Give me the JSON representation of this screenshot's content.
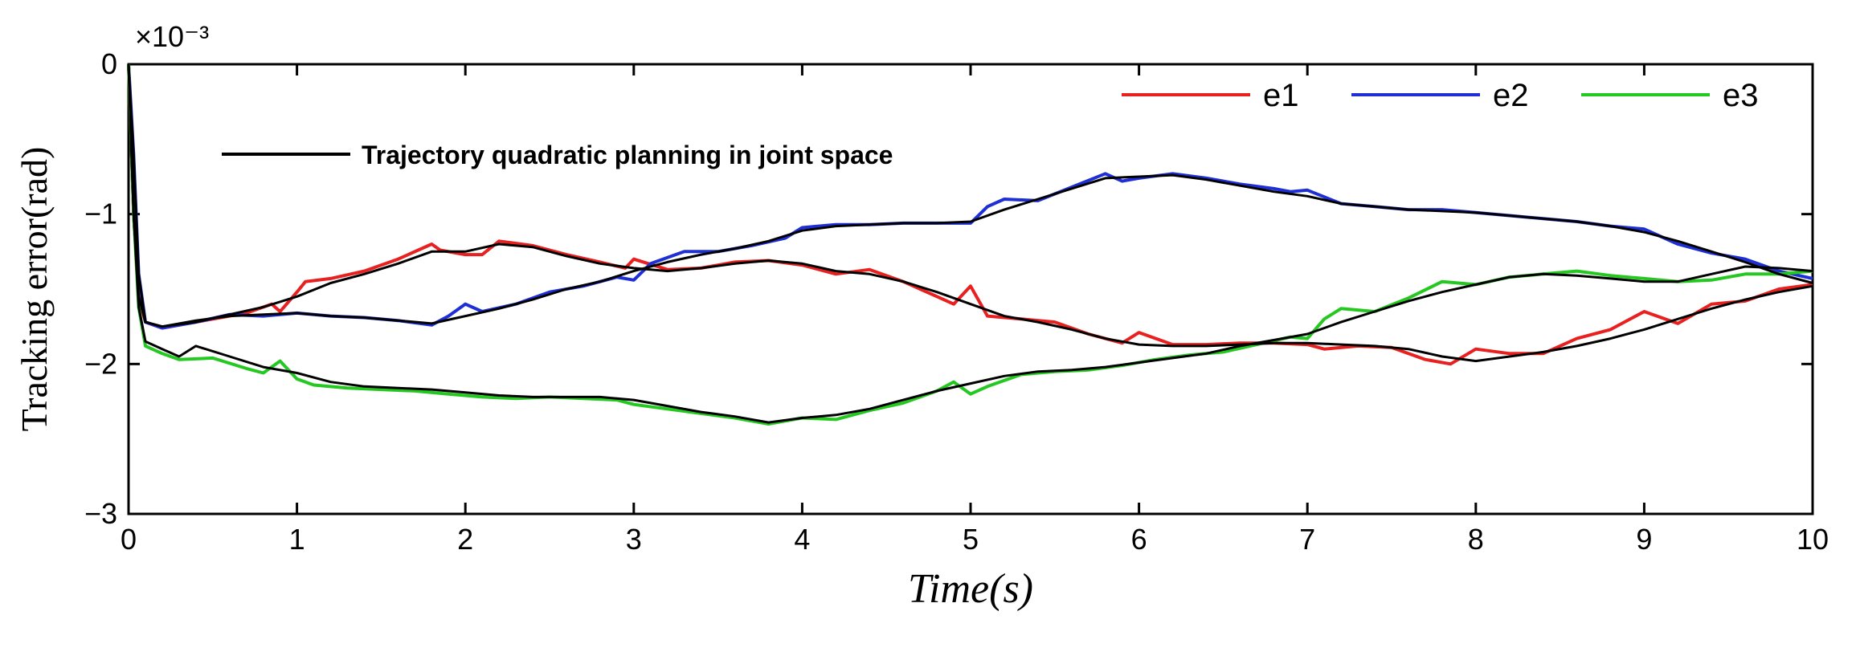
{
  "chart_data": {
    "type": "line",
    "exponent_label": "×10⁻³",
    "xlabel": "Time(s)",
    "ylabel": "Tracking error(rad)",
    "xlim": [
      0,
      10
    ],
    "ylim": [
      -3,
      0
    ],
    "xticks": [
      0,
      1,
      2,
      3,
      4,
      5,
      6,
      7,
      8,
      9,
      10
    ],
    "xtick_labels": [
      "0",
      "1",
      "2",
      "3",
      "4",
      "5",
      "6",
      "7",
      "8",
      "9",
      "10"
    ],
    "yticks": [
      0,
      -1,
      -2,
      -3
    ],
    "ytick_labels": [
      "0",
      "−1",
      "−2",
      "−3"
    ],
    "grid": false,
    "legend": [
      "e1",
      "e2",
      "e3"
    ],
    "legend_placement": "top-right",
    "annotation": {
      "label": "Trajectory quadratic planning in joint space",
      "color": "#000000"
    },
    "series": [
      {
        "name": "e1",
        "color": "#e8201f",
        "x": [
          0,
          0.03,
          0.06,
          0.1,
          0.2,
          0.3,
          0.5,
          0.7,
          0.85,
          0.9,
          1.0,
          1.05,
          1.2,
          1.4,
          1.6,
          1.8,
          1.85,
          2.0,
          2.1,
          2.2,
          2.4,
          2.6,
          2.8,
          2.95,
          3.0,
          3.2,
          3.4,
          3.6,
          3.8,
          4.0,
          4.2,
          4.4,
          4.6,
          4.8,
          4.9,
          5.0,
          5.1,
          5.3,
          5.5,
          5.7,
          5.9,
          6.0,
          6.2,
          6.4,
          6.6,
          6.8,
          7.0,
          7.1,
          7.3,
          7.5,
          7.7,
          7.85,
          8.0,
          8.2,
          8.4,
          8.6,
          8.8,
          9.0,
          9.2,
          9.4,
          9.6,
          9.8,
          10.0
        ],
        "y": [
          0,
          -1.0,
          -1.55,
          -1.72,
          -1.76,
          -1.74,
          -1.7,
          -1.66,
          -1.6,
          -1.65,
          -1.52,
          -1.45,
          -1.43,
          -1.38,
          -1.3,
          -1.2,
          -1.24,
          -1.27,
          -1.27,
          -1.18,
          -1.21,
          -1.27,
          -1.32,
          -1.36,
          -1.3,
          -1.37,
          -1.36,
          -1.32,
          -1.31,
          -1.34,
          -1.4,
          -1.37,
          -1.45,
          -1.55,
          -1.6,
          -1.48,
          -1.68,
          -1.7,
          -1.72,
          -1.8,
          -1.86,
          -1.79,
          -1.87,
          -1.87,
          -1.86,
          -1.86,
          -1.87,
          -1.9,
          -1.88,
          -1.89,
          -1.97,
          -2.0,
          -1.9,
          -1.93,
          -1.93,
          -1.83,
          -1.77,
          -1.65,
          -1.73,
          -1.6,
          -1.58,
          -1.5,
          -1.47
        ]
      },
      {
        "name": "e2",
        "color": "#1f2fd6",
        "x": [
          0,
          0.03,
          0.06,
          0.1,
          0.2,
          0.4,
          0.6,
          0.8,
          1.0,
          1.2,
          1.4,
          1.6,
          1.8,
          1.9,
          2.0,
          2.1,
          2.3,
          2.5,
          2.7,
          2.9,
          3.0,
          3.1,
          3.3,
          3.5,
          3.7,
          3.9,
          4.0,
          4.2,
          4.4,
          4.6,
          4.8,
          5.0,
          5.1,
          5.2,
          5.4,
          5.6,
          5.8,
          5.9,
          6.0,
          6.2,
          6.4,
          6.6,
          6.8,
          6.9,
          7.0,
          7.2,
          7.4,
          7.6,
          7.8,
          8.0,
          8.2,
          8.4,
          8.6,
          8.8,
          9.0,
          9.2,
          9.4,
          9.6,
          9.8,
          10.0
        ],
        "y": [
          0,
          -0.6,
          -1.4,
          -1.72,
          -1.76,
          -1.72,
          -1.67,
          -1.68,
          -1.66,
          -1.68,
          -1.69,
          -1.71,
          -1.74,
          -1.68,
          -1.6,
          -1.65,
          -1.6,
          -1.52,
          -1.48,
          -1.42,
          -1.44,
          -1.33,
          -1.25,
          -1.25,
          -1.21,
          -1.16,
          -1.09,
          -1.07,
          -1.07,
          -1.06,
          -1.06,
          -1.06,
          -0.95,
          -0.9,
          -0.91,
          -0.82,
          -0.73,
          -0.78,
          -0.76,
          -0.73,
          -0.76,
          -0.8,
          -0.83,
          -0.85,
          -0.84,
          -0.93,
          -0.95,
          -0.97,
          -0.97,
          -0.99,
          -1.01,
          -1.03,
          -1.05,
          -1.08,
          -1.1,
          -1.2,
          -1.26,
          -1.3,
          -1.38,
          -1.43
        ]
      },
      {
        "name": "e3",
        "color": "#25c820",
        "x": [
          0,
          0.03,
          0.06,
          0.1,
          0.2,
          0.3,
          0.5,
          0.7,
          0.8,
          0.9,
          1.0,
          1.1,
          1.3,
          1.5,
          1.7,
          1.9,
          2.1,
          2.3,
          2.5,
          2.7,
          2.9,
          3.0,
          3.2,
          3.4,
          3.6,
          3.8,
          4.0,
          4.2,
          4.4,
          4.6,
          4.8,
          4.9,
          5.0,
          5.1,
          5.3,
          5.5,
          5.7,
          5.9,
          6.1,
          6.3,
          6.5,
          6.7,
          6.9,
          7.0,
          7.1,
          7.2,
          7.4,
          7.6,
          7.8,
          8.0,
          8.2,
          8.4,
          8.6,
          8.8,
          9.0,
          9.2,
          9.4,
          9.6,
          9.8,
          10.0
        ],
        "y": [
          0,
          -1.0,
          -1.62,
          -1.88,
          -1.93,
          -1.97,
          -1.96,
          -2.03,
          -2.06,
          -1.98,
          -2.1,
          -2.14,
          -2.16,
          -2.17,
          -2.18,
          -2.2,
          -2.22,
          -2.23,
          -2.22,
          -2.23,
          -2.24,
          -2.27,
          -2.3,
          -2.33,
          -2.36,
          -2.4,
          -2.36,
          -2.37,
          -2.31,
          -2.26,
          -2.18,
          -2.12,
          -2.2,
          -2.15,
          -2.07,
          -2.05,
          -2.04,
          -2.01,
          -1.97,
          -1.94,
          -1.92,
          -1.87,
          -1.82,
          -1.83,
          -1.7,
          -1.63,
          -1.65,
          -1.56,
          -1.45,
          -1.47,
          -1.42,
          -1.4,
          -1.38,
          -1.41,
          -1.43,
          -1.45,
          -1.44,
          -1.4,
          -1.4,
          -1.38
        ]
      },
      {
        "name": "Trajectory quadratic planning in joint space",
        "color": "#000000",
        "role": "reference",
        "curves": [
          {
            "x": [
              0,
              0.03,
              0.06,
              0.1,
              0.2,
              0.4,
              0.6,
              0.8,
              1.0,
              1.2,
              1.4,
              1.6,
              1.8,
              2.0,
              2.2,
              2.4,
              2.6,
              2.8,
              3.0,
              3.2,
              3.4,
              3.6,
              3.8,
              4.0,
              4.2,
              4.4,
              4.6,
              4.8,
              5.0,
              5.2,
              5.4,
              5.6,
              5.8,
              6.0,
              6.2,
              6.4,
              6.6,
              6.8,
              7.0,
              7.2,
              7.4,
              7.6,
              7.8,
              8.0,
              8.2,
              8.4,
              8.6,
              8.8,
              9.0,
              9.2,
              9.4,
              9.6,
              9.8,
              10.0
            ],
            "y": [
              0,
              -1.0,
              -1.55,
              -1.72,
              -1.75,
              -1.72,
              -1.67,
              -1.62,
              -1.55,
              -1.46,
              -1.4,
              -1.33,
              -1.25,
              -1.25,
              -1.2,
              -1.22,
              -1.28,
              -1.33,
              -1.36,
              -1.38,
              -1.36,
              -1.33,
              -1.31,
              -1.33,
              -1.38,
              -1.4,
              -1.45,
              -1.52,
              -1.6,
              -1.68,
              -1.72,
              -1.77,
              -1.83,
              -1.87,
              -1.88,
              -1.88,
              -1.87,
              -1.86,
              -1.86,
              -1.87,
              -1.88,
              -1.9,
              -1.95,
              -1.98,
              -1.95,
              -1.92,
              -1.88,
              -1.83,
              -1.77,
              -1.7,
              -1.63,
              -1.57,
              -1.52,
              -1.48
            ]
          },
          {
            "x": [
              0,
              0.03,
              0.06,
              0.1,
              0.2,
              0.4,
              0.6,
              0.8,
              1.0,
              1.2,
              1.4,
              1.6,
              1.8,
              2.0,
              2.2,
              2.4,
              2.6,
              2.8,
              3.0,
              3.2,
              3.4,
              3.6,
              3.8,
              4.0,
              4.2,
              4.4,
              4.6,
              4.8,
              5.0,
              5.2,
              5.4,
              5.6,
              5.8,
              6.0,
              6.2,
              6.4,
              6.6,
              6.8,
              7.0,
              7.2,
              7.4,
              7.6,
              7.8,
              8.0,
              8.2,
              8.4,
              8.6,
              8.8,
              9.0,
              9.2,
              9.4,
              9.6,
              9.8,
              10.0
            ],
            "y": [
              0,
              -0.6,
              -1.4,
              -1.72,
              -1.75,
              -1.71,
              -1.68,
              -1.67,
              -1.66,
              -1.68,
              -1.69,
              -1.71,
              -1.73,
              -1.68,
              -1.63,
              -1.57,
              -1.5,
              -1.45,
              -1.38,
              -1.32,
              -1.27,
              -1.23,
              -1.18,
              -1.11,
              -1.08,
              -1.07,
              -1.06,
              -1.06,
              -1.05,
              -0.97,
              -0.9,
              -0.83,
              -0.76,
              -0.75,
              -0.74,
              -0.77,
              -0.81,
              -0.85,
              -0.88,
              -0.93,
              -0.95,
              -0.97,
              -0.98,
              -0.99,
              -1.01,
              -1.03,
              -1.05,
              -1.08,
              -1.12,
              -1.18,
              -1.25,
              -1.32,
              -1.4,
              -1.46
            ]
          },
          {
            "x": [
              0,
              0.03,
              0.06,
              0.1,
              0.2,
              0.3,
              0.4,
              0.6,
              0.8,
              1.0,
              1.2,
              1.4,
              1.6,
              1.8,
              2.0,
              2.2,
              2.4,
              2.6,
              2.8,
              3.0,
              3.2,
              3.4,
              3.6,
              3.8,
              4.0,
              4.2,
              4.4,
              4.6,
              4.8,
              5.0,
              5.2,
              5.4,
              5.6,
              5.8,
              6.0,
              6.2,
              6.4,
              6.6,
              6.8,
              7.0,
              7.2,
              7.4,
              7.6,
              7.8,
              8.0,
              8.2,
              8.4,
              8.6,
              8.8,
              9.0,
              9.2,
              9.4,
              9.6,
              9.8,
              10.0
            ],
            "y": [
              0,
              -1.0,
              -1.62,
              -1.85,
              -1.9,
              -1.95,
              -1.88,
              -1.95,
              -2.02,
              -2.06,
              -2.12,
              -2.15,
              -2.16,
              -2.17,
              -2.19,
              -2.21,
              -2.22,
              -2.22,
              -2.22,
              -2.24,
              -2.28,
              -2.32,
              -2.35,
              -2.39,
              -2.36,
              -2.34,
              -2.3,
              -2.24,
              -2.18,
              -2.13,
              -2.08,
              -2.05,
              -2.04,
              -2.02,
              -1.99,
              -1.96,
              -1.93,
              -1.88,
              -1.84,
              -1.8,
              -1.72,
              -1.65,
              -1.58,
              -1.52,
              -1.47,
              -1.42,
              -1.4,
              -1.41,
              -1.43,
              -1.45,
              -1.45,
              -1.4,
              -1.35,
              -1.36,
              -1.38
            ]
          }
        ]
      }
    ]
  }
}
